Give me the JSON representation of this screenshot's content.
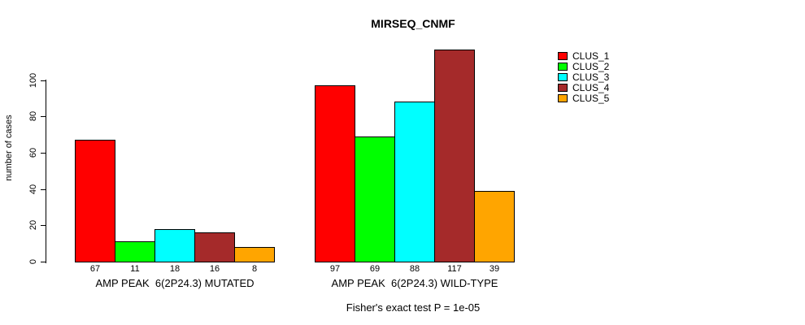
{
  "chart_data": {
    "type": "bar",
    "title": "MIRSEQ_CNMF",
    "ylabel": "number of cases",
    "xlabel": "",
    "ylim": [
      0,
      120
    ],
    "yticks": [
      0,
      20,
      40,
      60,
      80,
      100
    ],
    "grid": false,
    "legend_position": "right",
    "annotation": "Fisher's exact test P = 1e-05",
    "categories": [
      "CLUS_1",
      "CLUS_2",
      "CLUS_3",
      "CLUS_4",
      "CLUS_5"
    ],
    "series": [
      {
        "name": "CLUS_1",
        "color": "#FF0000",
        "values": [
          67,
          97
        ]
      },
      {
        "name": "CLUS_2",
        "color": "#00FF00",
        "values": [
          11,
          69
        ]
      },
      {
        "name": "CLUS_3",
        "color": "#00FFFF",
        "values": [
          18,
          88
        ]
      },
      {
        "name": "CLUS_4",
        "color": "#A52A2A",
        "values": [
          16,
          117
        ]
      },
      {
        "name": "CLUS_5",
        "color": "#FFA500",
        "values": [
          8,
          39
        ]
      }
    ],
    "groups": [
      {
        "label": "AMP PEAK  6(2P24.3) MUTATED",
        "values": [
          67,
          11,
          18,
          16,
          8
        ]
      },
      {
        "label": "AMP PEAK  6(2P24.3) WILD-TYPE",
        "values": [
          97,
          69,
          88,
          117,
          39
        ]
      }
    ],
    "bar_value_labels": [
      [
        "67",
        "11",
        "18",
        "16",
        "8"
      ],
      [
        "97",
        "69",
        "88",
        "117",
        "39"
      ]
    ]
  },
  "legend": {
    "entries": [
      {
        "label": "CLUS_1",
        "color": "#FF0000"
      },
      {
        "label": "CLUS_2",
        "color": "#00FF00"
      },
      {
        "label": "CLUS_3",
        "color": "#00FFFF"
      },
      {
        "label": "CLUS_4",
        "color": "#A52A2A"
      },
      {
        "label": "CLUS_5",
        "color": "#FFA500"
      }
    ]
  }
}
